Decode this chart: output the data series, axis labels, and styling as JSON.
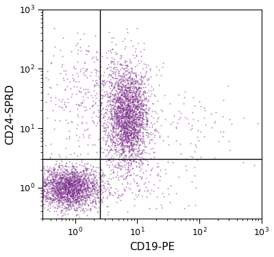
{
  "xlabel": "CD19-PE",
  "ylabel": "CD24-SPRD",
  "xlim_log": [
    0.3,
    1000
  ],
  "ylim_log": [
    0.3,
    1000
  ],
  "dot_color": "#7B2D8B",
  "dot_alpha": 0.55,
  "dot_size": 2.0,
  "gate_x": 2.5,
  "gate_y": 3.0,
  "background_color": "#ffffff",
  "clusters": [
    {
      "name": "bottom_left",
      "x_log_center": -0.1,
      "y_log_center": 0.0,
      "x_log_std": 0.25,
      "y_log_std": 0.18,
      "n_points": 2000
    },
    {
      "name": "center_high",
      "x_log_center": 0.85,
      "y_log_center": 1.2,
      "x_log_std": 0.18,
      "y_log_std": 0.42,
      "n_points": 2500
    },
    {
      "name": "sparse_upper_left",
      "x_log_center": 0.2,
      "y_log_center": 1.6,
      "x_log_std": 0.35,
      "y_log_std": 0.5,
      "n_points": 300
    },
    {
      "name": "sparse_right_mid",
      "x_log_center": 1.8,
      "y_log_center": 1.0,
      "x_log_std": 0.45,
      "y_log_std": 0.45,
      "n_points": 100
    },
    {
      "name": "bottom_right_sparse",
      "x_log_center": 0.9,
      "y_log_center": 0.05,
      "x_log_std": 0.45,
      "y_log_std": 0.2,
      "n_points": 120
    }
  ]
}
